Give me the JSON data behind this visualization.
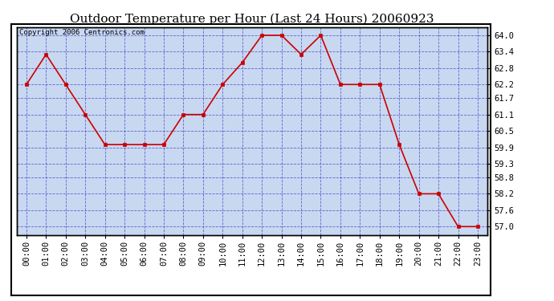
{
  "title": "Outdoor Temperature per Hour (Last 24 Hours) 20060923",
  "copyright_text": "Copyright 2006 Centronics.com",
  "hours": [
    "00:00",
    "01:00",
    "02:00",
    "03:00",
    "04:00",
    "05:00",
    "06:00",
    "07:00",
    "08:00",
    "09:00",
    "10:00",
    "11:00",
    "12:00",
    "13:00",
    "14:00",
    "15:00",
    "16:00",
    "17:00",
    "18:00",
    "19:00",
    "20:00",
    "21:00",
    "22:00",
    "23:00"
  ],
  "temperatures": [
    62.2,
    63.3,
    62.2,
    61.1,
    60.0,
    60.0,
    60.0,
    60.0,
    61.1,
    61.1,
    62.2,
    63.0,
    64.0,
    64.0,
    63.3,
    64.0,
    62.2,
    62.2,
    62.2,
    60.0,
    58.2,
    58.2,
    57.0,
    57.0
  ],
  "line_color": "#cc0000",
  "marker_color": "#cc0000",
  "plot_bg": "#c8d8f0",
  "grid_color": "#3333cc",
  "border_color": "#000000",
  "title_color": "#000000",
  "ylim_min": 56.7,
  "ylim_max": 64.3,
  "yticks": [
    57.0,
    57.6,
    58.2,
    58.8,
    59.3,
    59.9,
    60.5,
    61.1,
    61.7,
    62.2,
    62.8,
    63.4,
    64.0
  ],
  "title_fontsize": 11,
  "tick_fontsize": 7.5,
  "copyright_fontsize": 6.5
}
